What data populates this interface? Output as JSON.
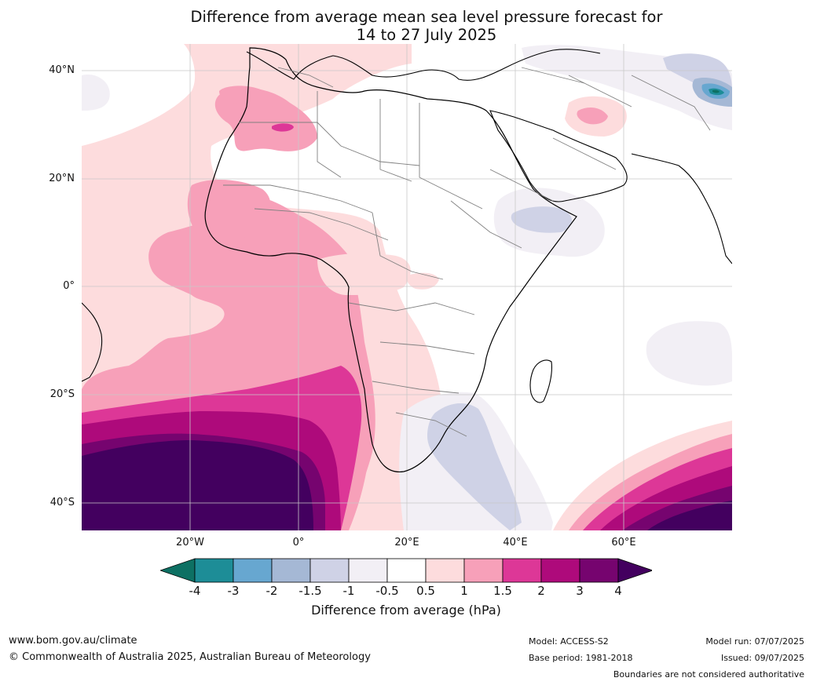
{
  "title": {
    "line1": "Difference from average mean sea level pressure forecast for",
    "line2": "14 to 27 July 2025"
  },
  "map": {
    "lat_ticks": [
      "40°N",
      "20°N",
      "0°",
      "20°S",
      "40°S"
    ],
    "lon_ticks": [
      "20°W",
      "0°",
      "20°E",
      "40°E",
      "60°E"
    ]
  },
  "colorbar": {
    "tick_labels": [
      "-4",
      "-3",
      "-2",
      "-1.5",
      "-1",
      "-0.5",
      "0.5",
      "1",
      "1.5",
      "2",
      "3",
      "4"
    ],
    "label": "Difference from average (hPa)",
    "colors": {
      "below_min": "#0d7063",
      "bands": [
        "#1d8d97",
        "#67a7d0",
        "#a5b8d5",
        "#cfd2e6",
        "#f2eff5",
        "#ffffff",
        "#fddcdd",
        "#f7a0b9",
        "#dd3797",
        "#ae0a7b",
        "#76046f"
      ],
      "above_max": "#43005f"
    }
  },
  "footer": {
    "website": "www.bom.gov.au/climate",
    "copyright": "© Commonwealth of Australia 2025, Australian Bureau of Meteorology",
    "model": "Model: ACCESS-S2",
    "base_period": "Base period: 1981-2018",
    "model_run": "Model run: 07/07/2025",
    "issued": "Issued: 09/07/2025",
    "disclaimer": "Boundaries are not considered authoritative"
  }
}
